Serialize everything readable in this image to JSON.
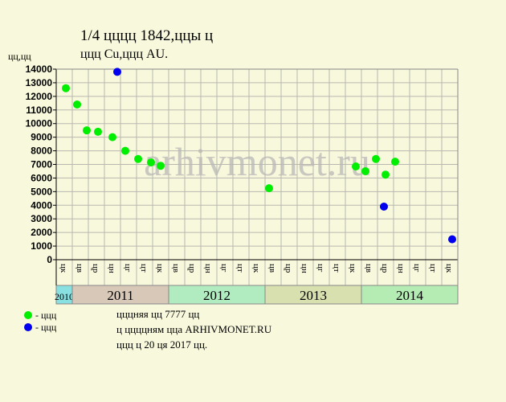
{
  "chart_data": {
    "type": "scatter",
    "title": "1/4 цццц 1842,ццы ц",
    "subtitle": "ццц Cu,ццц AU.",
    "y_label": "цц,цц",
    "xlim": [
      0,
      25
    ],
    "ylim": [
      0,
      14000
    ],
    "yticks": [
      0,
      1000,
      2000,
      3000,
      4000,
      5000,
      6000,
      7000,
      8000,
      9000,
      10000,
      11000,
      12000,
      13000,
      14000
    ],
    "grid": true,
    "years": [
      {
        "label": "2010",
        "color": "#88e0e0",
        "months": [
          "цк"
        ]
      },
      {
        "label": "2011",
        "color": "#d8c8b8",
        "months": [
          "цв",
          "цр",
          "цн",
          "цг",
          "цт",
          "цк"
        ]
      },
      {
        "label": "2012",
        "color": "#b0ecc0",
        "months": [
          "цв",
          "цр",
          "цн",
          "цг",
          "цт",
          "цк"
        ]
      },
      {
        "label": "2013",
        "color": "#d8e0b0",
        "months": [
          "цв",
          "цр",
          "цн",
          "цг",
          "цт",
          "цк"
        ]
      },
      {
        "label": "2014",
        "color": "#b4ecb4",
        "months": [
          "цв",
          "цр",
          "цн",
          "цг",
          "цт",
          "цк"
        ]
      }
    ],
    "series": [
      {
        "name": "- ццц",
        "color": "#00ee00",
        "x": [
          0.6,
          1.3,
          1.9,
          2.6,
          3.5,
          4.3,
          5.1,
          5.9,
          6.5,
          13.25,
          18.65,
          19.25,
          19.9,
          20.5,
          21.1
        ],
        "values": [
          12600,
          11400,
          9500,
          9400,
          9000,
          8000,
          7400,
          7150,
          6900,
          5250,
          6850,
          6500,
          7400,
          6250,
          7200
        ]
      },
      {
        "name": "- ццц",
        "color": "#0000ee",
        "x": [
          3.8,
          20.4,
          24.65
        ],
        "values": [
          13800,
          3900,
          1500
        ]
      }
    ],
    "notes": [
      "цццняя цц 7777 цц",
      "ц ццццням цца ARHIVMONET.RU",
      "ццц ц 20 ця 2017 цц."
    ],
    "watermark": "arhivmonet.ru"
  }
}
